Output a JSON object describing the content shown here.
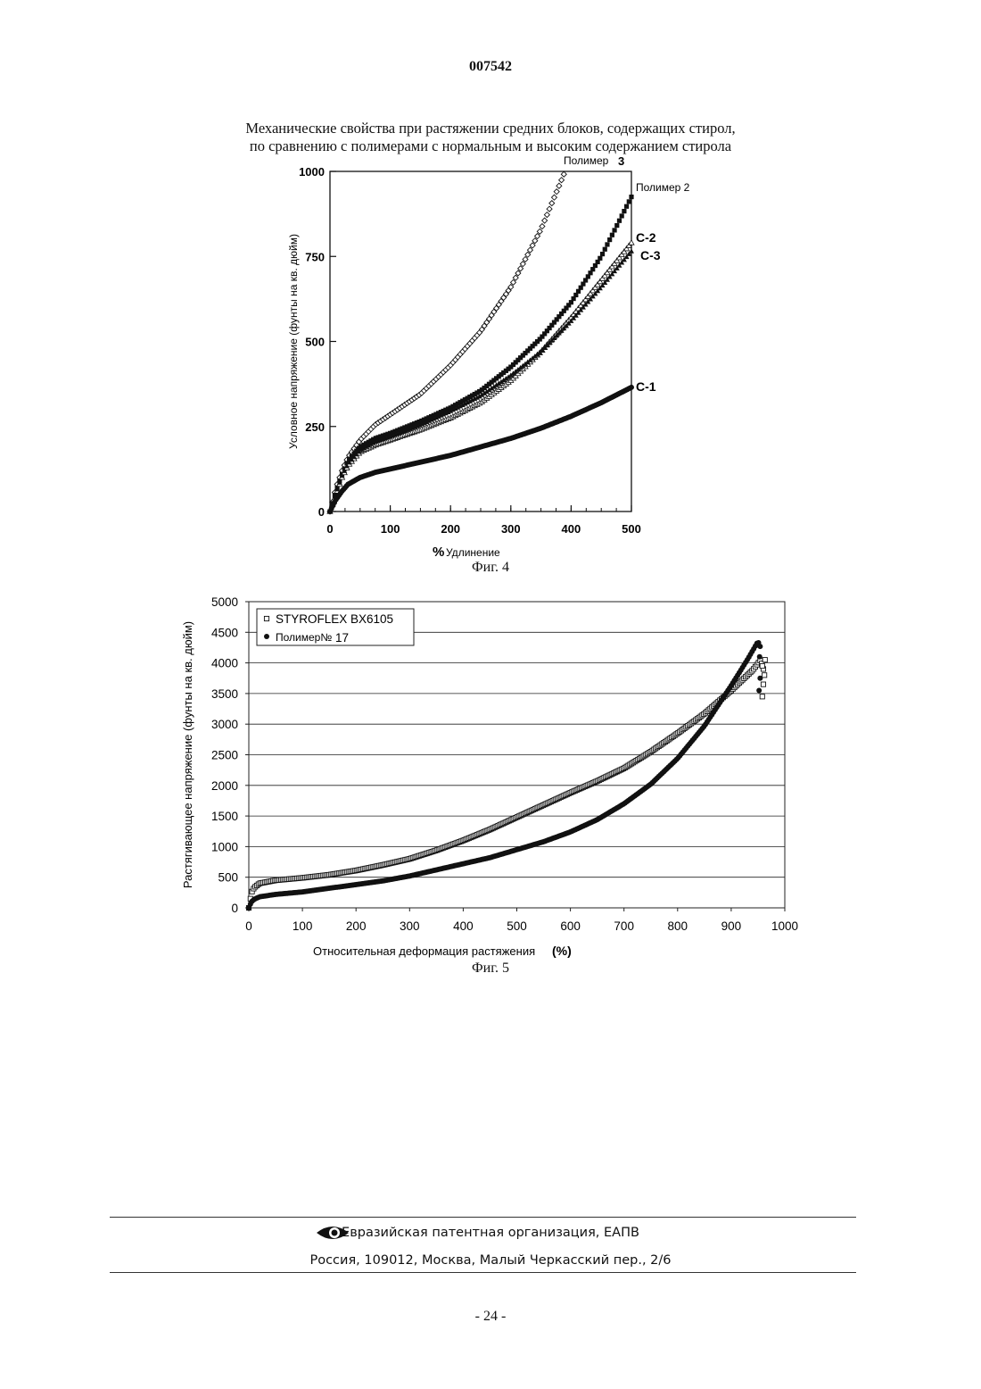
{
  "header": {
    "doc_number": "007542"
  },
  "fig4": {
    "caption_line1": "Механические свойства при растяжении средних блоков, содержащих стирол,",
    "caption_line2": "по сравнению с полимерами с нормальным и высоким содержанием стирола",
    "label": "Фиг. 4"
  },
  "fig5": {
    "label": "Фиг. 5"
  },
  "footer": {
    "org": "Евразийская патентная организация, ЕАПВ",
    "address": "Россия, 109012, Москва, Малый Черкасский пер., 2/6",
    "page": "- 24 -"
  },
  "chart_data": [
    {
      "type": "line",
      "ylabel": "Условное напряжение (фунты на кв. дюйм)",
      "xlabel_symbol": "%",
      "xlabel": "Удлинение",
      "xlim": [
        0,
        500
      ],
      "ylim": [
        0,
        1000
      ],
      "x_ticks": [
        "0",
        "100",
        "200",
        "300",
        "400",
        "500"
      ],
      "y_ticks": [
        "0",
        "250",
        "500",
        "750",
        "1000"
      ],
      "grid": false,
      "series": [
        {
          "name": "Полимер 3",
          "label_parts": [
            "Полимер",
            "3"
          ],
          "marker": "open-diamond",
          "x": [
            0,
            10,
            20,
            30,
            50,
            75,
            100,
            150,
            200,
            250,
            300,
            350,
            390
          ],
          "y": [
            0,
            70,
            120,
            160,
            210,
            255,
            285,
            345,
            430,
            530,
            660,
            830,
            1000
          ]
        },
        {
          "name": "Полимер 2",
          "marker": "filled-square",
          "x": [
            0,
            10,
            20,
            30,
            50,
            75,
            100,
            150,
            200,
            250,
            300,
            350,
            400,
            450,
            500
          ],
          "y": [
            0,
            60,
            110,
            150,
            190,
            215,
            230,
            265,
            305,
            355,
            425,
            510,
            615,
            750,
            925
          ]
        },
        {
          "name": "С-2",
          "marker": "open-triangle",
          "x": [
            0,
            10,
            20,
            30,
            50,
            75,
            100,
            150,
            200,
            250,
            300,
            350,
            400,
            450,
            500
          ],
          "y": [
            0,
            50,
            100,
            135,
            175,
            195,
            210,
            240,
            275,
            320,
            385,
            470,
            570,
            680,
            790
          ]
        },
        {
          "name": "С-3",
          "marker": "filled-triangle",
          "x": [
            0,
            10,
            20,
            30,
            50,
            75,
            100,
            150,
            200,
            250,
            300,
            350,
            400,
            450,
            500
          ],
          "y": [
            0,
            55,
            105,
            140,
            180,
            205,
            220,
            255,
            295,
            340,
            400,
            470,
            560,
            660,
            765
          ]
        },
        {
          "name": "С-1",
          "marker": "filled-circle",
          "x": [
            0,
            10,
            20,
            30,
            50,
            75,
            100,
            150,
            200,
            250,
            300,
            350,
            400,
            450,
            500
          ],
          "y": [
            0,
            35,
            60,
            80,
            100,
            115,
            125,
            145,
            165,
            190,
            215,
            245,
            280,
            320,
            365
          ]
        }
      ]
    },
    {
      "type": "scatter",
      "ylabel": "Растягивающее напряжение (фунты на кв. дюйм)",
      "xlabel": "Относительная деформация растяжения",
      "xlabel_unit": "(%)",
      "xlim": [
        0,
        1000
      ],
      "ylim": [
        0,
        5000
      ],
      "x_ticks": [
        "0",
        "100",
        "200",
        "300",
        "400",
        "500",
        "600",
        "700",
        "800",
        "900",
        "1000"
      ],
      "y_ticks": [
        "0",
        "500",
        "1000",
        "1500",
        "2000",
        "2500",
        "3000",
        "3500",
        "4000",
        "4500",
        "5000"
      ],
      "grid": true,
      "legend_position": "top-left",
      "series": [
        {
          "name": "STYROFLEX BX6105",
          "marker": "open-square",
          "x": [
            0,
            5,
            10,
            20,
            50,
            100,
            150,
            200,
            250,
            300,
            350,
            400,
            450,
            500,
            550,
            600,
            650,
            700,
            750,
            800,
            850,
            900,
            940,
            955,
            960
          ],
          "y": [
            0,
            250,
            330,
            400,
            450,
            490,
            540,
            610,
            700,
            800,
            940,
            1100,
            1280,
            1480,
            1680,
            1880,
            2070,
            2280,
            2550,
            2850,
            3170,
            3550,
            3880,
            4050,
            3900
          ]
        },
        {
          "name": "Полимер№17",
          "label_parts": [
            "Полимер№",
            "17"
          ],
          "marker": "filled-circle",
          "x": [
            0,
            5,
            10,
            20,
            50,
            100,
            150,
            200,
            250,
            300,
            350,
            400,
            450,
            500,
            550,
            600,
            650,
            700,
            750,
            800,
            850,
            900,
            930,
            950,
            955
          ],
          "y": [
            0,
            100,
            140,
            180,
            220,
            260,
            320,
            380,
            440,
            520,
            620,
            720,
            820,
            950,
            1080,
            1240,
            1440,
            1700,
            2020,
            2440,
            2970,
            3630,
            4050,
            4350,
            4250
          ]
        }
      ]
    }
  ]
}
